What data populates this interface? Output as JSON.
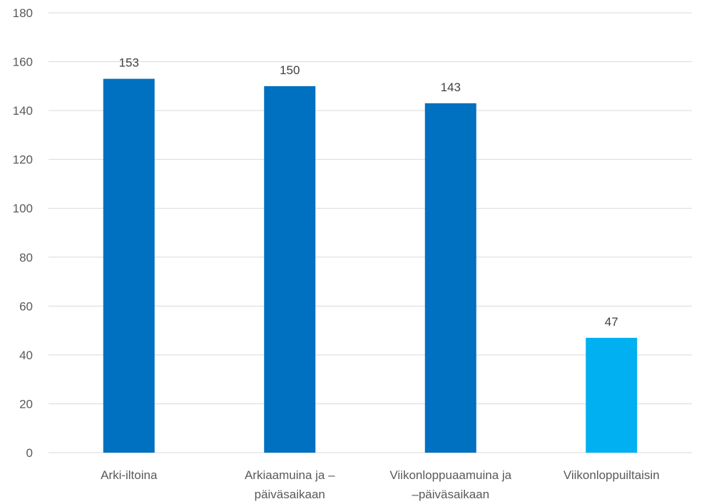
{
  "chart_data": {
    "type": "bar",
    "categories": [
      [
        "Arki-iltoina"
      ],
      [
        "Arkiaamuina ja –",
        "päiväsaikaan"
      ],
      [
        "Viikonloppuaamuina ja",
        "–päiväsaikaan"
      ],
      [
        "Viikonloppuiltaisin"
      ]
    ],
    "values": [
      153,
      150,
      143,
      47
    ],
    "bar_colors": [
      "#0070c0",
      "#0070c0",
      "#0070c0",
      "#00b0f0"
    ],
    "ylim": [
      0,
      180
    ],
    "yticks": [
      0,
      20,
      40,
      60,
      80,
      100,
      120,
      140,
      160,
      180
    ],
    "grid": true,
    "title": "",
    "xlabel": "",
    "ylabel": ""
  }
}
